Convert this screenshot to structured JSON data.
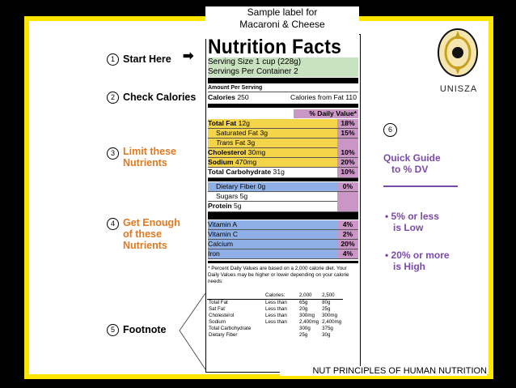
{
  "caption": {
    "line1": "Sample label for",
    "line2": "Macaroni & Cheese"
  },
  "label": {
    "title": "Nutrition Facts",
    "serving_size": "Serving Size 1 cup (228g)",
    "servings_per": "Servings Per Container  2",
    "amount_per": "Amount Per Serving",
    "calories_label": "Calories",
    "calories_value": "250",
    "calories_fat": "Calories from Fat 110",
    "dv_header": "% Daily Value*",
    "nutrients": [
      {
        "name": "Total Fat",
        "amount": "12g",
        "pct": "18%"
      },
      {
        "name": "Saturated Fat",
        "amount": "3g",
        "pct": "15%"
      },
      {
        "name": "Trans",
        "amount": "Fat 3g",
        "pct": ""
      },
      {
        "name": "Cholesterol",
        "amount": "30mg",
        "pct": "10%"
      },
      {
        "name": "Sodium",
        "amount": "470mg",
        "pct": "20%"
      },
      {
        "name": "Total Carbohydrate",
        "amount": "31g",
        "pct": "10%"
      },
      {
        "name": "Dietary Fiber",
        "amount": "0g",
        "pct": "0%"
      },
      {
        "name": "Sugars",
        "amount": "5g",
        "pct": ""
      },
      {
        "name": "Protein",
        "amount": "5g",
        "pct": ""
      }
    ],
    "vitamins": [
      {
        "name": "Vitamin A",
        "pct": "4%"
      },
      {
        "name": "Vitamin C",
        "pct": "2%"
      },
      {
        "name": "Calcium",
        "pct": "20%"
      },
      {
        "name": "Iron",
        "pct": "4%"
      }
    ],
    "footnote_text": "* Percent Daily Values are based on a 2,000 calorie diet. Your Daily Values may be higher or lower depending on your calorie needs:",
    "footnote_table": {
      "header": [
        "",
        "Calories:",
        "2,000",
        "2,500"
      ],
      "rows": [
        [
          "Total Fat",
          "Less than",
          "65g",
          "80g"
        ],
        [
          "Sat Fat",
          "Less than",
          "20g",
          "25g"
        ],
        [
          "Cholesterol",
          "Less than",
          "300mg",
          "300mg"
        ],
        [
          "Sodium",
          "Less than",
          "2,400mg",
          "2,400mg"
        ],
        [
          "Total Carbohydrate",
          "",
          "300g",
          "375g"
        ],
        [
          "Dietary Fiber",
          "",
          "25g",
          "30g"
        ]
      ]
    }
  },
  "steps": [
    {
      "num": "1",
      "text": "Start Here"
    },
    {
      "num": "2",
      "text": "Check Calories"
    },
    {
      "num": "3",
      "text": "Limit these Nutrients"
    },
    {
      "num": "4",
      "text": "Get Enough of these Nutrients"
    },
    {
      "num": "5",
      "text": "Footnote"
    }
  ],
  "guide": {
    "num": "6",
    "title_line1": "Quick Guide",
    "title_line2": "to % DV",
    "bullet1_line1": "• 5% or less",
    "bullet1_line2": "is Low",
    "bullet2_line1": "• 20% or more",
    "bullet2_line2": "is High"
  },
  "logo_text": "UNISZA",
  "footer": "NUT PRINCIPLES OF HUMAN NUTRITION",
  "colors": {
    "yellow_border": "#ffe600",
    "label_green": "#c9e3c0",
    "limit_yellow": "#f4d54a",
    "enough_blue": "#8fb0e6",
    "dv_pink": "#c996c6",
    "step_orange": "#e07a1f",
    "guide_purple": "#7a4aa8"
  }
}
